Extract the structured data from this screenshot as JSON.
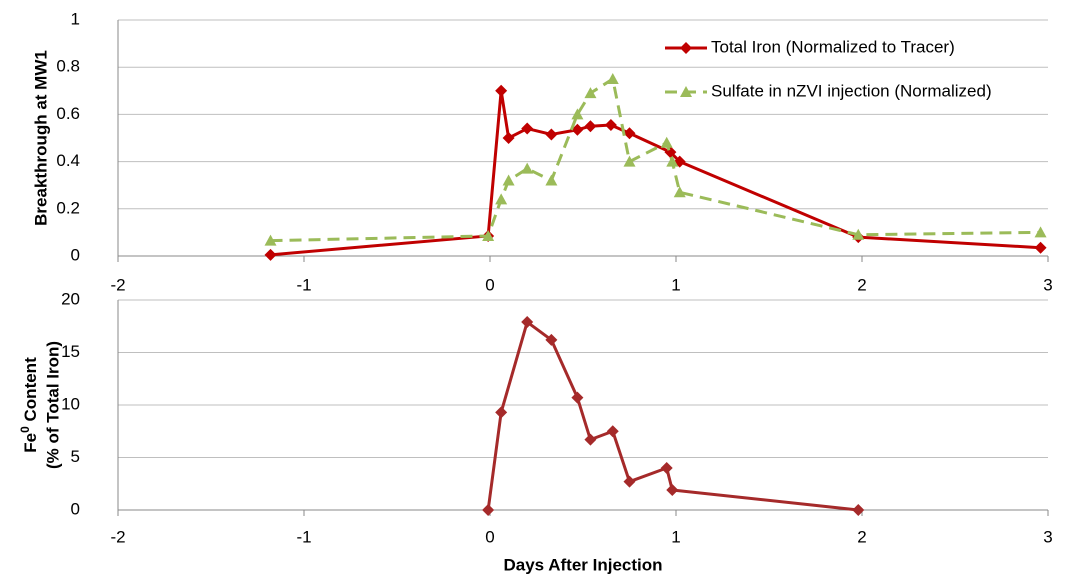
{
  "chart_data": [
    {
      "type": "line",
      "ylabel": "Breakthrough at MW1",
      "xlim": [
        -2,
        3
      ],
      "xticks": [
        -2,
        -1,
        0,
        1,
        2,
        3
      ],
      "ylim": [
        0,
        1
      ],
      "yticks": [
        0,
        0.2,
        0.4,
        0.6,
        0.8,
        1
      ],
      "grid": true,
      "legend": "upper right",
      "series": [
        {
          "name": "Total Iron (Normalized to Tracer)",
          "color": "#c00000",
          "marker": "diamond",
          "linestyle": "solid",
          "x": [
            -1.18,
            -0.01,
            0.06,
            0.1,
            0.2,
            0.33,
            0.47,
            0.54,
            0.65,
            0.75,
            0.97,
            1.02,
            1.98,
            2.96
          ],
          "values": [
            0.005,
            0.085,
            0.7,
            0.5,
            0.54,
            0.515,
            0.535,
            0.55,
            0.555,
            0.52,
            0.44,
            0.4,
            0.08,
            0.035
          ]
        },
        {
          "name": "Sulfate in nZVI injection (Normalized)",
          "color": "#9bbb59",
          "marker": "triangle",
          "linestyle": "dashed",
          "x": [
            -1.18,
            -0.01,
            0.06,
            0.1,
            0.2,
            0.33,
            0.47,
            0.54,
            0.66,
            0.75,
            0.95,
            0.98,
            1.02,
            1.98,
            2.96
          ],
          "values": [
            0.065,
            0.085,
            0.24,
            0.32,
            0.37,
            0.32,
            0.6,
            0.69,
            0.75,
            0.4,
            0.48,
            0.4,
            0.27,
            0.09,
            0.1
          ]
        }
      ]
    },
    {
      "type": "line",
      "ylabel": {
        "base": "Fe",
        "sup": "0",
        "rest": " Content",
        "line2": "(% of Total Iron)"
      },
      "xlabel": "Days After Injection",
      "xlim": [
        -2,
        3
      ],
      "xticks": [
        -2,
        -1,
        0,
        1,
        2,
        3
      ],
      "ylim": [
        0,
        20
      ],
      "yticks": [
        0,
        5,
        10,
        15,
        20
      ],
      "grid": true,
      "series": [
        {
          "color": "#a52a2a",
          "marker": "diamond",
          "linestyle": "solid",
          "x": [
            -0.01,
            0.06,
            0.2,
            0.33,
            0.47,
            0.54,
            0.66,
            0.75,
            0.95,
            0.98,
            1.98
          ],
          "values": [
            0,
            9.3,
            17.9,
            16.2,
            10.7,
            6.7,
            7.5,
            2.7,
            4.0,
            1.9,
            0
          ]
        }
      ]
    }
  ]
}
